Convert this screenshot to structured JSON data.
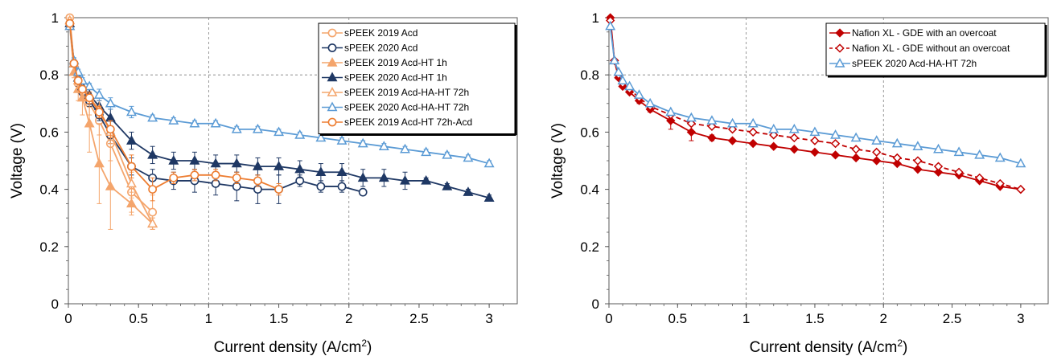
{
  "chart_data": [
    {
      "type": "line",
      "xlabel": "Current density (A/cm",
      "xlabel_sup": "2",
      "xlabel_close": ")",
      "ylabel": "Voltage (V)",
      "xlim": [
        0,
        3.2
      ],
      "ylim": [
        0,
        1
      ],
      "xticks": [
        0,
        0.5,
        1,
        1.5,
        2,
        2.5,
        3
      ],
      "xtick_labels": [
        "0",
        "0.5",
        "1",
        "1.5",
        "2",
        "2.5",
        "3"
      ],
      "yticks": [
        0,
        0.2,
        0.4,
        0.6,
        0.8,
        1
      ],
      "ytick_labels": [
        "0",
        "0.2",
        "0.4",
        "0.6",
        "0.8",
        "1"
      ],
      "grid": "dashed at x=1,2 and y=0.8 only",
      "legend": "top-right",
      "series": [
        {
          "name": "sPEEK 2019 Acd",
          "color": "#F4A56C",
          "marker": "circle-open",
          "dash": false,
          "x": [
            0.01,
            0.04,
            0.07,
            0.1,
            0.15,
            0.22,
            0.3,
            0.45,
            0.6
          ],
          "y": [
            1.0,
            0.84,
            0.77,
            0.74,
            0.7,
            0.64,
            0.56,
            0.39,
            0.32
          ],
          "err": [
            0.01,
            0.01,
            0.02,
            0.03,
            0.04,
            0.05,
            0.06,
            0.07,
            0.06
          ]
        },
        {
          "name": "sPEEK 2020 Acd",
          "color": "#1F3864",
          "marker": "circle-open",
          "dash": false,
          "x": [
            0.01,
            0.04,
            0.07,
            0.1,
            0.15,
            0.22,
            0.3,
            0.45,
            0.6,
            0.75,
            0.9,
            1.05,
            1.2,
            1.35,
            1.5,
            1.65,
            1.8,
            1.95,
            2.1
          ],
          "y": [
            0.98,
            0.84,
            0.78,
            0.74,
            0.71,
            0.66,
            0.59,
            0.48,
            0.44,
            0.43,
            0.43,
            0.42,
            0.41,
            0.4,
            0.4,
            0.43,
            0.41,
            0.41,
            0.39
          ],
          "err": [
            0.01,
            0.01,
            0.02,
            0.02,
            0.02,
            0.02,
            0.03,
            0.03,
            0.03,
            0.03,
            0.04,
            0.04,
            0.05,
            0.05,
            0.05,
            0.02,
            0.02,
            0.02,
            0.01
          ]
        },
        {
          "name": "sPEEK 2019 Acd-HT 1h",
          "color": "#F4A56C",
          "marker": "triangle-filled",
          "dash": false,
          "x": [
            0.01,
            0.04,
            0.07,
            0.1,
            0.15,
            0.22,
            0.3,
            0.45,
            0.6
          ],
          "y": [
            0.97,
            0.81,
            0.75,
            0.72,
            0.63,
            0.49,
            0.41,
            0.35,
            0.28
          ],
          "err": [
            0.01,
            0.02,
            0.04,
            0.06,
            0.1,
            0.14,
            0.15,
            0.04,
            0.02
          ]
        },
        {
          "name": "sPEEK 2020 Acd-HT 1h",
          "color": "#1F3864",
          "marker": "triangle-filled",
          "dash": false,
          "x": [
            0.01,
            0.04,
            0.07,
            0.1,
            0.15,
            0.22,
            0.3,
            0.45,
            0.6,
            0.75,
            0.9,
            1.05,
            1.2,
            1.35,
            1.5,
            1.65,
            1.8,
            1.95,
            2.1,
            2.25,
            2.4,
            2.55,
            2.7,
            2.85,
            3.0
          ],
          "y": [
            0.98,
            0.84,
            0.79,
            0.76,
            0.73,
            0.69,
            0.65,
            0.57,
            0.52,
            0.5,
            0.5,
            0.49,
            0.49,
            0.48,
            0.48,
            0.47,
            0.46,
            0.46,
            0.44,
            0.44,
            0.43,
            0.43,
            0.41,
            0.39,
            0.37
          ],
          "err": [
            0.01,
            0.01,
            0.01,
            0.02,
            0.02,
            0.02,
            0.03,
            0.03,
            0.03,
            0.03,
            0.03,
            0.03,
            0.03,
            0.03,
            0.03,
            0.03,
            0.03,
            0.03,
            0.03,
            0.03,
            0.03,
            0.01,
            0.01,
            0.01,
            0.01
          ]
        },
        {
          "name": "sPEEK 2019 Acd-HA-HT 72h",
          "color": "#F4A56C",
          "marker": "triangle-open",
          "dash": false,
          "x": [
            0.01,
            0.04,
            0.07,
            0.1,
            0.15,
            0.22,
            0.3,
            0.45,
            0.6
          ],
          "y": [
            0.99,
            0.84,
            0.78,
            0.75,
            0.72,
            0.68,
            0.6,
            0.42,
            0.28
          ],
          "err": [
            0.01,
            0.01,
            0.01,
            0.02,
            0.02,
            0.03,
            0.04,
            0.05,
            0.02
          ]
        },
        {
          "name": "sPEEK 2020 Acd-HA-HT 72h",
          "color": "#5B9BD5",
          "marker": "triangle-open",
          "dash": false,
          "x": [
            0.01,
            0.04,
            0.07,
            0.1,
            0.15,
            0.22,
            0.3,
            0.45,
            0.6,
            0.75,
            0.9,
            1.05,
            1.2,
            1.35,
            1.5,
            1.65,
            1.8,
            1.95,
            2.1,
            2.25,
            2.4,
            2.55,
            2.7,
            2.85,
            3.0
          ],
          "y": [
            0.97,
            0.85,
            0.81,
            0.78,
            0.76,
            0.73,
            0.7,
            0.67,
            0.65,
            0.64,
            0.63,
            0.63,
            0.61,
            0.61,
            0.6,
            0.59,
            0.58,
            0.57,
            0.56,
            0.55,
            0.54,
            0.53,
            0.52,
            0.51,
            0.49
          ],
          "err": [
            0.01,
            0.01,
            0.01,
            0.01,
            0.01,
            0.02,
            0.02,
            0.02,
            0.01,
            0.01,
            0.01,
            0.01,
            0.01,
            0.01,
            0.01,
            0.01,
            0.01,
            0.01,
            0.01,
            0.01,
            0.01,
            0.01,
            0.01,
            0.01,
            0.01
          ]
        },
        {
          "name": "sPEEK 2019 Acd-HT 72h-Acd",
          "color": "#ED7D31",
          "marker": "circle-open",
          "dash": false,
          "x": [
            0.01,
            0.04,
            0.07,
            0.1,
            0.15,
            0.22,
            0.3,
            0.45,
            0.6,
            0.75,
            0.9,
            1.05,
            1.2,
            1.35,
            1.5
          ],
          "y": [
            0.98,
            0.84,
            0.78,
            0.75,
            0.72,
            0.67,
            0.61,
            0.48,
            0.4,
            0.44,
            0.45,
            0.45,
            0.44,
            0.43,
            0.4
          ],
          "err": [
            0.01,
            0.01,
            0.01,
            0.01,
            0.02,
            0.02,
            0.03,
            0.04,
            0.04,
            0.02,
            0.02,
            0.02,
            0.02,
            0.02,
            0.02
          ]
        }
      ]
    },
    {
      "type": "line",
      "xlabel": "Current density (A/cm",
      "xlabel_sup": "2",
      "xlabel_close": ")",
      "ylabel": "Voltage (V)",
      "xlim": [
        0,
        3.2
      ],
      "ylim": [
        0,
        1
      ],
      "xticks": [
        0,
        0.5,
        1,
        1.5,
        2,
        2.5,
        3
      ],
      "xtick_labels": [
        "0",
        "0.5",
        "1",
        "1.5",
        "2",
        "2.5",
        "3"
      ],
      "yticks": [
        0,
        0.2,
        0.4,
        0.6,
        0.8,
        1
      ],
      "ytick_labels": [
        "0",
        "0.2",
        "0.4",
        "0.6",
        "0.8",
        "1"
      ],
      "grid": "dashed at x=1,2 and y=0.8 only",
      "legend": "top-right",
      "series": [
        {
          "name": "Nafion XL - GDE with an overcoat",
          "color": "#C00000",
          "marker": "diamond-filled",
          "dash": false,
          "x": [
            0.01,
            0.04,
            0.07,
            0.1,
            0.15,
            0.22,
            0.3,
            0.45,
            0.6,
            0.75,
            0.9,
            1.05,
            1.2,
            1.35,
            1.5,
            1.65,
            1.8,
            1.95,
            2.1,
            2.25,
            2.4,
            2.55,
            2.7,
            2.85,
            3.0
          ],
          "y": [
            1.0,
            0.85,
            0.79,
            0.76,
            0.74,
            0.71,
            0.68,
            0.64,
            0.6,
            0.58,
            0.57,
            0.56,
            0.55,
            0.54,
            0.53,
            0.52,
            0.51,
            0.5,
            0.49,
            0.47,
            0.46,
            0.45,
            0.43,
            0.41,
            0.4
          ],
          "err": [
            0,
            0,
            0,
            0,
            0,
            0.01,
            0.01,
            0.03,
            0.03,
            0.01,
            0,
            0,
            0,
            0,
            0,
            0,
            0,
            0,
            0,
            0,
            0,
            0,
            0,
            0,
            0
          ]
        },
        {
          "name": "Nafion XL - GDE without an overcoat",
          "color": "#C00000",
          "marker": "diamond-open",
          "dash": true,
          "x": [
            0.01,
            0.04,
            0.07,
            0.1,
            0.15,
            0.22,
            0.3,
            0.45,
            0.6,
            0.75,
            0.9,
            1.05,
            1.2,
            1.35,
            1.5,
            1.65,
            1.8,
            1.95,
            2.1,
            2.25,
            2.4,
            2.55,
            2.7,
            2.85,
            3.0
          ],
          "y": [
            0.99,
            0.85,
            0.8,
            0.77,
            0.75,
            0.72,
            0.69,
            0.66,
            0.63,
            0.62,
            0.61,
            0.6,
            0.59,
            0.58,
            0.57,
            0.56,
            0.54,
            0.53,
            0.51,
            0.5,
            0.48,
            0.46,
            0.44,
            0.42,
            0.4
          ],
          "err": [
            0,
            0,
            0,
            0,
            0,
            0,
            0,
            0,
            0,
            0,
            0,
            0,
            0,
            0,
            0,
            0,
            0,
            0,
            0,
            0,
            0,
            0,
            0,
            0,
            0
          ]
        },
        {
          "name": "sPEEK 2020 Acd-HA-HT 72h",
          "color": "#5B9BD5",
          "marker": "triangle-open",
          "dash": false,
          "x": [
            0.01,
            0.04,
            0.07,
            0.1,
            0.15,
            0.22,
            0.3,
            0.45,
            0.6,
            0.75,
            0.9,
            1.05,
            1.2,
            1.35,
            1.5,
            1.65,
            1.8,
            1.95,
            2.1,
            2.25,
            2.4,
            2.55,
            2.7,
            2.85,
            3.0
          ],
          "y": [
            0.97,
            0.85,
            0.81,
            0.78,
            0.76,
            0.73,
            0.7,
            0.67,
            0.65,
            0.64,
            0.63,
            0.63,
            0.61,
            0.61,
            0.6,
            0.59,
            0.58,
            0.57,
            0.56,
            0.55,
            0.54,
            0.53,
            0.52,
            0.51,
            0.49
          ],
          "err": [
            0,
            0,
            0,
            0,
            0,
            0,
            0,
            0,
            0,
            0,
            0,
            0,
            0,
            0,
            0,
            0,
            0,
            0,
            0,
            0,
            0,
            0,
            0,
            0,
            0
          ]
        }
      ]
    }
  ]
}
